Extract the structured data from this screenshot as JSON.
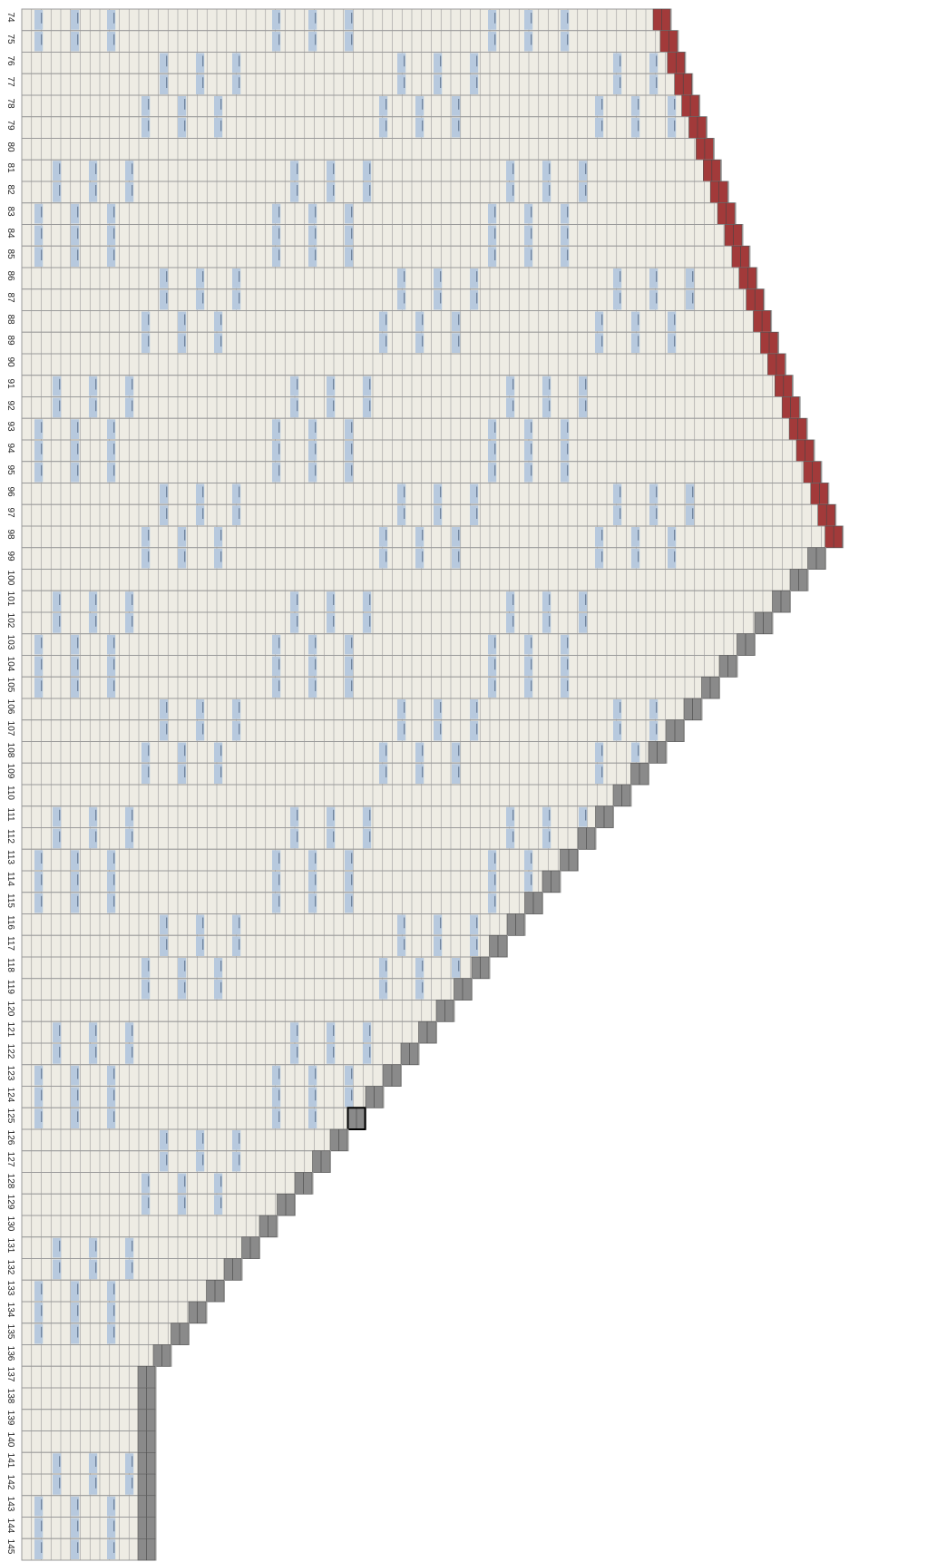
{
  "editor": {
    "view": "weaving-draft-grid",
    "first_row": 74,
    "last_row": 145,
    "row_labels": [
      "74",
      "75",
      "76",
      "77",
      "78",
      "79",
      "80",
      "81",
      "82",
      "83",
      "84",
      "85",
      "86",
      "87",
      "88",
      "89",
      "90",
      "91",
      "92",
      "93",
      "94",
      "95",
      "96",
      "97",
      "98",
      "99",
      "100",
      "101",
      "102",
      "103",
      "104",
      "105",
      "106",
      "107",
      "108",
      "109",
      "110",
      "111",
      "112",
      "113",
      "114",
      "115",
      "116",
      "117",
      "118",
      "119",
      "120",
      "121",
      "122",
      "123",
      "124",
      "125",
      "126",
      "127",
      "128",
      "129",
      "130",
      "131",
      "132",
      "133",
      "134",
      "135",
      "136",
      "137",
      "138",
      "139",
      "140",
      "141",
      "142",
      "143",
      "144",
      "145"
    ],
    "selected_row": "125"
  },
  "colors": {
    "background": "#ffffff",
    "cell_fill": "#eeece4",
    "grid_line": "#9a9a9a",
    "pattern_fill": "#b7c9de",
    "pattern_stroke": "#5a6f8a",
    "active_marker": "#a23a3a",
    "completed_marker": "#8a8a8a",
    "selection_outline": "#000000"
  }
}
